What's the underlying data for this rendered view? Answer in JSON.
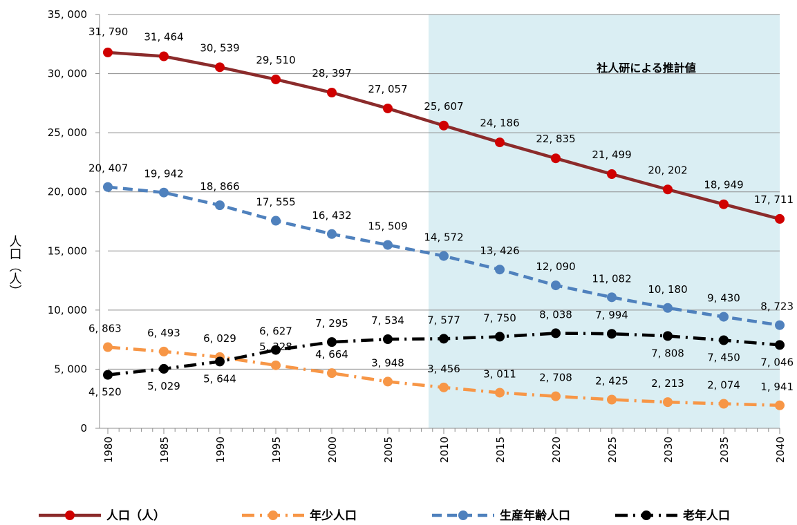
{
  "chart_data": {
    "type": "line",
    "x": [
      "1980",
      "1985",
      "1990",
      "1995",
      "2000",
      "2005",
      "2010",
      "2015",
      "2020",
      "2025",
      "2030",
      "2035",
      "2040"
    ],
    "ylim": [
      0,
      35000
    ],
    "yticks": [
      "0",
      "5, 000",
      "10, 000",
      "15, 000",
      "20, 000",
      "25, 000",
      "30, 000",
      "35, 000"
    ],
    "ylabel": "人口（人）",
    "grid": true,
    "legend_placement": "bottom",
    "annotation": {
      "text": "社人研による推計値",
      "x_start": "2010",
      "x_end": "2040",
      "color": "#daeef3"
    },
    "series": [
      {
        "name": "人口（人）",
        "color": "#8b2b2b",
        "marker_color": "#d00000",
        "style": "solid",
        "values": [
          31790,
          31464,
          30539,
          29510,
          28397,
          27057,
          25607,
          24186,
          22835,
          21499,
          20202,
          18949,
          17711
        ],
        "labels": [
          "31, 790",
          "31, 464",
          "30, 539",
          "29, 510",
          "28, 397",
          "27, 057",
          "25, 607",
          "24, 186",
          "22, 835",
          "21, 499",
          "20, 202",
          "18, 949",
          "17, 711"
        ]
      },
      {
        "name": "年少人口",
        "color": "#f79646",
        "marker_color": "#f79646",
        "style": "dashdot",
        "values": [
          6863,
          6493,
          6029,
          5328,
          4664,
          3948,
          3456,
          3011,
          2708,
          2425,
          2213,
          2074,
          1941
        ],
        "labels": [
          "6, 863",
          "6, 493",
          "6, 029",
          "5, 328",
          "4, 664",
          "3, 948",
          "3, 456",
          "3, 011",
          "2, 708",
          "2, 425",
          "2, 213",
          "2, 074",
          "1, 941"
        ]
      },
      {
        "name": "生産年齢人口",
        "color": "#4f81bd",
        "marker_color": "#4f81bd",
        "style": "dashed",
        "values": [
          20407,
          19942,
          18866,
          17555,
          16432,
          15509,
          14572,
          13426,
          12090,
          11082,
          10180,
          9430,
          8723
        ],
        "labels": [
          "20, 407",
          "19, 942",
          "18, 866",
          "17, 555",
          "16, 432",
          "15, 509",
          "14, 572",
          "13, 426",
          "12, 090",
          "11, 082",
          "10, 180",
          "9, 430",
          "8, 723"
        ]
      },
      {
        "name": "老年人口",
        "color": "#000000",
        "marker_color": "#000000",
        "style": "dashdot",
        "values": [
          4520,
          5029,
          5644,
          6627,
          7295,
          7534,
          7577,
          7750,
          8038,
          7994,
          7808,
          7450,
          7046
        ],
        "labels": [
          "4, 520",
          "5, 029",
          "5, 644",
          "6, 627",
          "7, 295",
          "7, 534",
          "7, 577",
          "7, 750",
          "8, 038",
          "7, 994",
          "7, 808",
          "7, 450",
          "7, 046"
        ]
      }
    ]
  }
}
